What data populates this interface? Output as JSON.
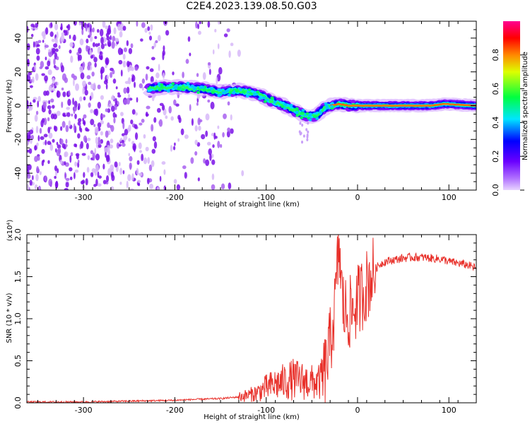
{
  "figure_title": "C2E4.2023.139.08.50.G03",
  "chart_data": [
    {
      "type": "heatmap",
      "name": "spectrogram",
      "xlabel": "Height of straight line (km)",
      "ylabel": "Frequency (Hz)",
      "xlim": [
        -362,
        130
      ],
      "ylim": [
        -50,
        50
      ],
      "xticks": [
        -300,
        -200,
        -100,
        0,
        100
      ],
      "yticks": [
        -40,
        -20,
        0,
        20,
        40
      ],
      "colorbar": {
        "label": "Normalized spectral amplitude",
        "range": [
          0.0,
          1.0
        ],
        "ticks": [
          "0.0",
          "0.2",
          "0.4",
          "0.6",
          "0.8"
        ],
        "colormap": [
          "#cc99ff",
          "#8800ff",
          "#0000ff",
          "#00ffff",
          "#00ff00",
          "#ffff00",
          "#ff0000",
          "#ff00aa"
        ]
      },
      "ridge": {
        "height_km": [
          -230,
          -210,
          -190,
          -170,
          -150,
          -130,
          -110,
          -95,
          -80,
          -65,
          -55,
          -45,
          -38,
          -30,
          -20,
          -10,
          0,
          40,
          80,
          95,
          130
        ],
        "frequency_hz": [
          10,
          11,
          11,
          10,
          8,
          9,
          7,
          3,
          0,
          -4,
          -6,
          -6,
          -2,
          0,
          1,
          0,
          0,
          0,
          0,
          1,
          0
        ]
      },
      "noise_region_km": [
        -362,
        -125
      ],
      "grid": false
    },
    {
      "type": "line",
      "name": "snr",
      "xlabel": "Height of straight line (km)",
      "ylabel": "SNR (10 * v/v)",
      "y_multiplier": "(x10⁴)",
      "xlim": [
        -362,
        130
      ],
      "ylim": [
        0.0,
        2.0
      ],
      "xticks": [
        -300,
        -200,
        -100,
        0,
        100
      ],
      "yticks": [
        "0.0",
        "0.5",
        "1.0",
        "1.5",
        "2.0"
      ],
      "line_color": "#e8302a",
      "series": [
        {
          "x": [
            -362,
            -300,
            -250,
            -200,
            -180,
            -150,
            -130,
            -120,
            -110,
            -100,
            -90,
            -80,
            -70,
            -60,
            -50,
            -40,
            -35,
            -30,
            -25,
            -22,
            -20,
            -18,
            -15,
            -10,
            -5,
            0,
            5,
            10,
            15,
            20,
            25,
            30,
            40,
            50,
            60,
            70,
            80,
            90,
            95,
            100,
            110,
            120,
            130
          ],
          "y": [
            0.01,
            0.01,
            0.02,
            0.03,
            0.04,
            0.05,
            0.07,
            0.09,
            0.12,
            0.18,
            0.22,
            0.25,
            0.28,
            0.26,
            0.24,
            0.25,
            0.4,
            0.7,
            1.1,
            1.6,
            1.9,
            1.4,
            1.1,
            1.05,
            1.1,
            1.2,
            1.3,
            1.4,
            1.5,
            1.6,
            1.65,
            1.68,
            1.7,
            1.72,
            1.73,
            1.73,
            1.72,
            1.71,
            1.7,
            1.68,
            1.66,
            1.64,
            1.6
          ]
        }
      ],
      "grid": false
    }
  ]
}
